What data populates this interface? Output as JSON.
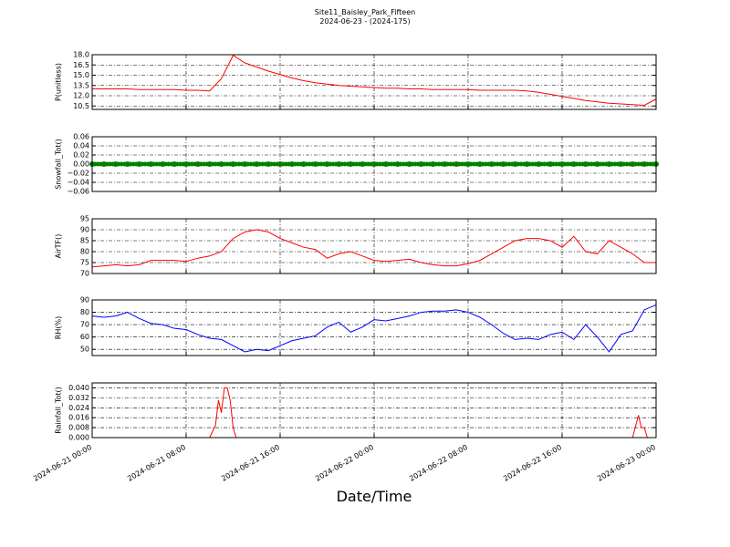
{
  "title": "Site11_Baisley_Park_Fifteen",
  "subtitle": "2024-06-23 - (2024-175)",
  "xlabel": "Date/Time",
  "chart_data": [
    {
      "type": "line",
      "ylabel": "P(unitless)",
      "color": "#ff0000",
      "grid": true,
      "x": [
        "2024-06-21 00:00",
        "2024-06-21 01:00",
        "2024-06-21 02:00",
        "2024-06-21 03:00",
        "2024-06-21 04:00",
        "2024-06-21 05:00",
        "2024-06-21 06:00",
        "2024-06-21 07:00",
        "2024-06-21 08:00",
        "2024-06-21 09:00",
        "2024-06-21 10:00",
        "2024-06-21 11:00",
        "2024-06-21 12:00",
        "2024-06-21 13:00",
        "2024-06-21 14:00",
        "2024-06-21 15:00",
        "2024-06-21 16:00",
        "2024-06-21 17:00",
        "2024-06-21 18:00",
        "2024-06-21 19:00",
        "2024-06-21 20:00",
        "2024-06-21 21:00",
        "2024-06-21 22:00",
        "2024-06-21 23:00",
        "2024-06-22 00:00",
        "2024-06-22 01:00",
        "2024-06-22 02:00",
        "2024-06-22 03:00",
        "2024-06-22 04:00",
        "2024-06-22 05:00",
        "2024-06-22 06:00",
        "2024-06-22 07:00",
        "2024-06-22 08:00",
        "2024-06-22 09:00",
        "2024-06-22 10:00",
        "2024-06-22 11:00",
        "2024-06-22 12:00",
        "2024-06-22 13:00",
        "2024-06-22 14:00",
        "2024-06-22 15:00",
        "2024-06-22 16:00",
        "2024-06-22 17:00",
        "2024-06-22 18:00",
        "2024-06-22 19:00",
        "2024-06-22 20:00",
        "2024-06-22 21:00",
        "2024-06-22 22:00",
        "2024-06-22 23:00",
        "2024-06-23 00:00"
      ],
      "values": [
        13.0,
        13.0,
        13.0,
        13.0,
        12.9,
        12.9,
        12.9,
        12.9,
        12.8,
        12.8,
        12.7,
        14.5,
        17.9,
        16.8,
        16.2,
        15.6,
        15.1,
        14.6,
        14.2,
        13.9,
        13.7,
        13.5,
        13.4,
        13.3,
        13.2,
        13.1,
        13.1,
        13.0,
        13.0,
        12.9,
        12.9,
        12.9,
        12.9,
        12.8,
        12.8,
        12.8,
        12.8,
        12.7,
        12.5,
        12.2,
        11.9,
        11.6,
        11.3,
        11.1,
        10.9,
        10.8,
        10.7,
        10.6,
        11.5
      ],
      "xlim": [
        "2024-06-21 00:00",
        "2024-06-23 00:00"
      ],
      "xticks": [
        "2024-06-21 00:00",
        "2024-06-21 08:00",
        "2024-06-21 16:00",
        "2024-06-22 00:00",
        "2024-06-22 08:00",
        "2024-06-22 16:00",
        "2024-06-23 00:00"
      ],
      "ylim": [
        10,
        18
      ],
      "yticks": [
        10.5,
        {
          "value": 12,
          "label": "12.0"
        },
        13.5,
        {
          "value": 15,
          "label": "15.0"
        },
        16.5,
        {
          "value": 18,
          "label": "18.0"
        }
      ]
    },
    {
      "type": "scatter",
      "ylabel": "Snowfall_Tot()",
      "color": "#008000",
      "grid": true,
      "x": [
        "2024-06-21 00:00",
        "2024-06-21 01:00",
        "2024-06-21 02:00",
        "2024-06-21 03:00",
        "2024-06-21 04:00",
        "2024-06-21 05:00",
        "2024-06-21 06:00",
        "2024-06-21 07:00",
        "2024-06-21 08:00",
        "2024-06-21 09:00",
        "2024-06-21 10:00",
        "2024-06-21 11:00",
        "2024-06-21 12:00",
        "2024-06-21 13:00",
        "2024-06-21 14:00",
        "2024-06-21 15:00",
        "2024-06-21 16:00",
        "2024-06-21 17:00",
        "2024-06-21 18:00",
        "2024-06-21 19:00",
        "2024-06-21 20:00",
        "2024-06-21 21:00",
        "2024-06-21 22:00",
        "2024-06-21 23:00",
        "2024-06-22 00:00",
        "2024-06-22 01:00",
        "2024-06-22 02:00",
        "2024-06-22 03:00",
        "2024-06-22 04:00",
        "2024-06-22 05:00",
        "2024-06-22 06:00",
        "2024-06-22 07:00",
        "2024-06-22 08:00",
        "2024-06-22 09:00",
        "2024-06-22 10:00",
        "2024-06-22 11:00",
        "2024-06-22 12:00",
        "2024-06-22 13:00",
        "2024-06-22 14:00",
        "2024-06-22 15:00",
        "2024-06-22 16:00",
        "2024-06-22 17:00",
        "2024-06-22 18:00",
        "2024-06-22 19:00",
        "2024-06-22 20:00",
        "2024-06-22 21:00",
        "2024-06-22 22:00",
        "2024-06-22 23:00",
        "2024-06-23 00:00"
      ],
      "values": [
        0,
        0,
        0,
        0,
        0,
        0,
        0,
        0,
        0,
        0,
        0,
        0,
        0,
        0,
        0,
        0,
        0,
        0,
        0,
        0,
        0,
        0,
        0,
        0,
        0,
        0,
        0,
        0,
        0,
        0,
        0,
        0,
        0,
        0,
        0,
        0,
        0,
        0,
        0,
        0,
        0,
        0,
        0,
        0,
        0,
        0,
        0,
        0,
        0
      ],
      "xlim": [
        "2024-06-21 00:00",
        "2024-06-23 00:00"
      ],
      "xticks": [
        "2024-06-21 00:00",
        "2024-06-21 08:00",
        "2024-06-21 16:00",
        "2024-06-22 00:00",
        "2024-06-22 08:00",
        "2024-06-22 16:00",
        "2024-06-23 00:00"
      ],
      "ylim": [
        -0.06,
        0.06
      ],
      "yticks": [
        {
          "value": -0.06,
          "label": "−0.06"
        },
        {
          "value": -0.04,
          "label": "−0.04"
        },
        {
          "value": -0.02,
          "label": "−0.02"
        },
        {
          "value": 0,
          "label": "0.00"
        },
        {
          "value": 0.02,
          "label": "0.02"
        },
        {
          "value": 0.04,
          "label": "0.04"
        },
        {
          "value": 0.06,
          "label": "0.06"
        }
      ]
    },
    {
      "type": "line",
      "ylabel": "AirTF()",
      "color": "#ff0000",
      "grid": true,
      "x": [
        "2024-06-21 00:00",
        "2024-06-21 01:00",
        "2024-06-21 02:00",
        "2024-06-21 03:00",
        "2024-06-21 04:00",
        "2024-06-21 05:00",
        "2024-06-21 06:00",
        "2024-06-21 07:00",
        "2024-06-21 08:00",
        "2024-06-21 09:00",
        "2024-06-21 10:00",
        "2024-06-21 11:00",
        "2024-06-21 12:00",
        "2024-06-21 13:00",
        "2024-06-21 14:00",
        "2024-06-21 15:00",
        "2024-06-21 16:00",
        "2024-06-21 17:00",
        "2024-06-21 18:00",
        "2024-06-21 19:00",
        "2024-06-21 20:00",
        "2024-06-21 21:00",
        "2024-06-21 22:00",
        "2024-06-21 23:00",
        "2024-06-22 00:00",
        "2024-06-22 01:00",
        "2024-06-22 02:00",
        "2024-06-22 03:00",
        "2024-06-22 04:00",
        "2024-06-22 05:00",
        "2024-06-22 06:00",
        "2024-06-22 07:00",
        "2024-06-22 08:00",
        "2024-06-22 09:00",
        "2024-06-22 10:00",
        "2024-06-22 11:00",
        "2024-06-22 12:00",
        "2024-06-22 13:00",
        "2024-06-22 14:00",
        "2024-06-22 15:00",
        "2024-06-22 16:00",
        "2024-06-22 17:00",
        "2024-06-22 18:00",
        "2024-06-22 19:00",
        "2024-06-22 20:00",
        "2024-06-22 21:00",
        "2024-06-22 22:00",
        "2024-06-22 23:00",
        "2024-06-23 00:00"
      ],
      "values": [
        73,
        73.5,
        74,
        73.5,
        74,
        76,
        76,
        76,
        75.5,
        77,
        78,
        80,
        86,
        89,
        90,
        89,
        86,
        84,
        82,
        81,
        77,
        79,
        80,
        78,
        76,
        75.5,
        76,
        76.5,
        75,
        74,
        73.5,
        73.5,
        74.5,
        76,
        79,
        82,
        85,
        86,
        86,
        85,
        82,
        87,
        80,
        79,
        85,
        82,
        79,
        75,
        75
      ],
      "xlim": [
        "2024-06-21 00:00",
        "2024-06-23 00:00"
      ],
      "xticks": [
        "2024-06-21 00:00",
        "2024-06-21 08:00",
        "2024-06-21 16:00",
        "2024-06-22 00:00",
        "2024-06-22 08:00",
        "2024-06-22 16:00",
        "2024-06-23 00:00"
      ],
      "ylim": [
        70,
        95
      ],
      "yticks": [
        70,
        75,
        80,
        85,
        90,
        95
      ]
    },
    {
      "type": "line",
      "ylabel": "RH(%)",
      "color": "#0000ff",
      "grid": true,
      "x": [
        "2024-06-21 00:00",
        "2024-06-21 01:00",
        "2024-06-21 02:00",
        "2024-06-21 03:00",
        "2024-06-21 04:00",
        "2024-06-21 05:00",
        "2024-06-21 06:00",
        "2024-06-21 07:00",
        "2024-06-21 08:00",
        "2024-06-21 09:00",
        "2024-06-21 10:00",
        "2024-06-21 11:00",
        "2024-06-21 12:00",
        "2024-06-21 13:00",
        "2024-06-21 14:00",
        "2024-06-21 15:00",
        "2024-06-21 16:00",
        "2024-06-21 17:00",
        "2024-06-21 18:00",
        "2024-06-21 19:00",
        "2024-06-21 20:00",
        "2024-06-21 21:00",
        "2024-06-21 22:00",
        "2024-06-21 23:00",
        "2024-06-22 00:00",
        "2024-06-22 01:00",
        "2024-06-22 02:00",
        "2024-06-22 03:00",
        "2024-06-22 04:00",
        "2024-06-22 05:00",
        "2024-06-22 06:00",
        "2024-06-22 07:00",
        "2024-06-22 08:00",
        "2024-06-22 09:00",
        "2024-06-22 10:00",
        "2024-06-22 11:00",
        "2024-06-22 12:00",
        "2024-06-22 13:00",
        "2024-06-22 14:00",
        "2024-06-22 15:00",
        "2024-06-22 16:00",
        "2024-06-22 17:00",
        "2024-06-22 18:00",
        "2024-06-22 19:00",
        "2024-06-22 20:00",
        "2024-06-22 21:00",
        "2024-06-22 22:00",
        "2024-06-22 23:00",
        "2024-06-23 00:00"
      ],
      "values": [
        77,
        76,
        77,
        80,
        75,
        71,
        70,
        67,
        66,
        62,
        59,
        58,
        53,
        48,
        50,
        49,
        53,
        57,
        59,
        61,
        68,
        72,
        64,
        68,
        74,
        73,
        75,
        77,
        80,
        81,
        81,
        82,
        80,
        76,
        70,
        63,
        58,
        59,
        58,
        62,
        64,
        58,
        70,
        60,
        48,
        62,
        65,
        82,
        86
      ],
      "xlim": [
        "2024-06-21 00:00",
        "2024-06-23 00:00"
      ],
      "xticks": [
        "2024-06-21 00:00",
        "2024-06-21 08:00",
        "2024-06-21 16:00",
        "2024-06-22 00:00",
        "2024-06-22 08:00",
        "2024-06-22 16:00",
        "2024-06-23 00:00"
      ],
      "ylim": [
        45,
        90
      ],
      "yticks": [
        50,
        60,
        70,
        80,
        90
      ]
    },
    {
      "type": "line",
      "ylabel": "Rainfall_Tot()",
      "color": "#ff0000",
      "grid": true,
      "x": [
        "2024-06-21 00:00",
        "2024-06-21 10:00",
        "2024-06-21 10:30",
        "2024-06-21 10:45",
        "2024-06-21 11:00",
        "2024-06-21 11:15",
        "2024-06-21 11:30",
        "2024-06-21 11:45",
        "2024-06-21 12:00",
        "2024-06-21 12:15",
        "2024-06-22 22:00",
        "2024-06-22 22:30",
        "2024-06-22 22:45",
        "2024-06-22 23:00",
        "2024-06-22 23:15",
        "2024-06-23 00:00"
      ],
      "values": [
        0,
        0,
        0.01,
        0.03,
        0.02,
        0.04,
        0.04,
        0.03,
        0.008,
        0,
        0,
        0.018,
        0.008,
        0.008,
        0,
        0
      ],
      "xlim": [
        "2024-06-21 00:00",
        "2024-06-23 00:00"
      ],
      "xticks": [
        "2024-06-21 00:00",
        "2024-06-21 08:00",
        "2024-06-21 16:00",
        "2024-06-22 00:00",
        "2024-06-22 08:00",
        "2024-06-22 16:00",
        "2024-06-23 00:00"
      ],
      "ylim": [
        0,
        0.044
      ],
      "yticks": [
        {
          "value": 0,
          "label": "0.000"
        },
        {
          "value": 0.008,
          "label": "0.008"
        },
        {
          "value": 0.016,
          "label": "0.016"
        },
        {
          "value": 0.024,
          "label": "0.024"
        },
        {
          "value": 0.032,
          "label": "0.032"
        },
        {
          "value": 0.04,
          "label": "0.040"
        }
      ]
    }
  ]
}
